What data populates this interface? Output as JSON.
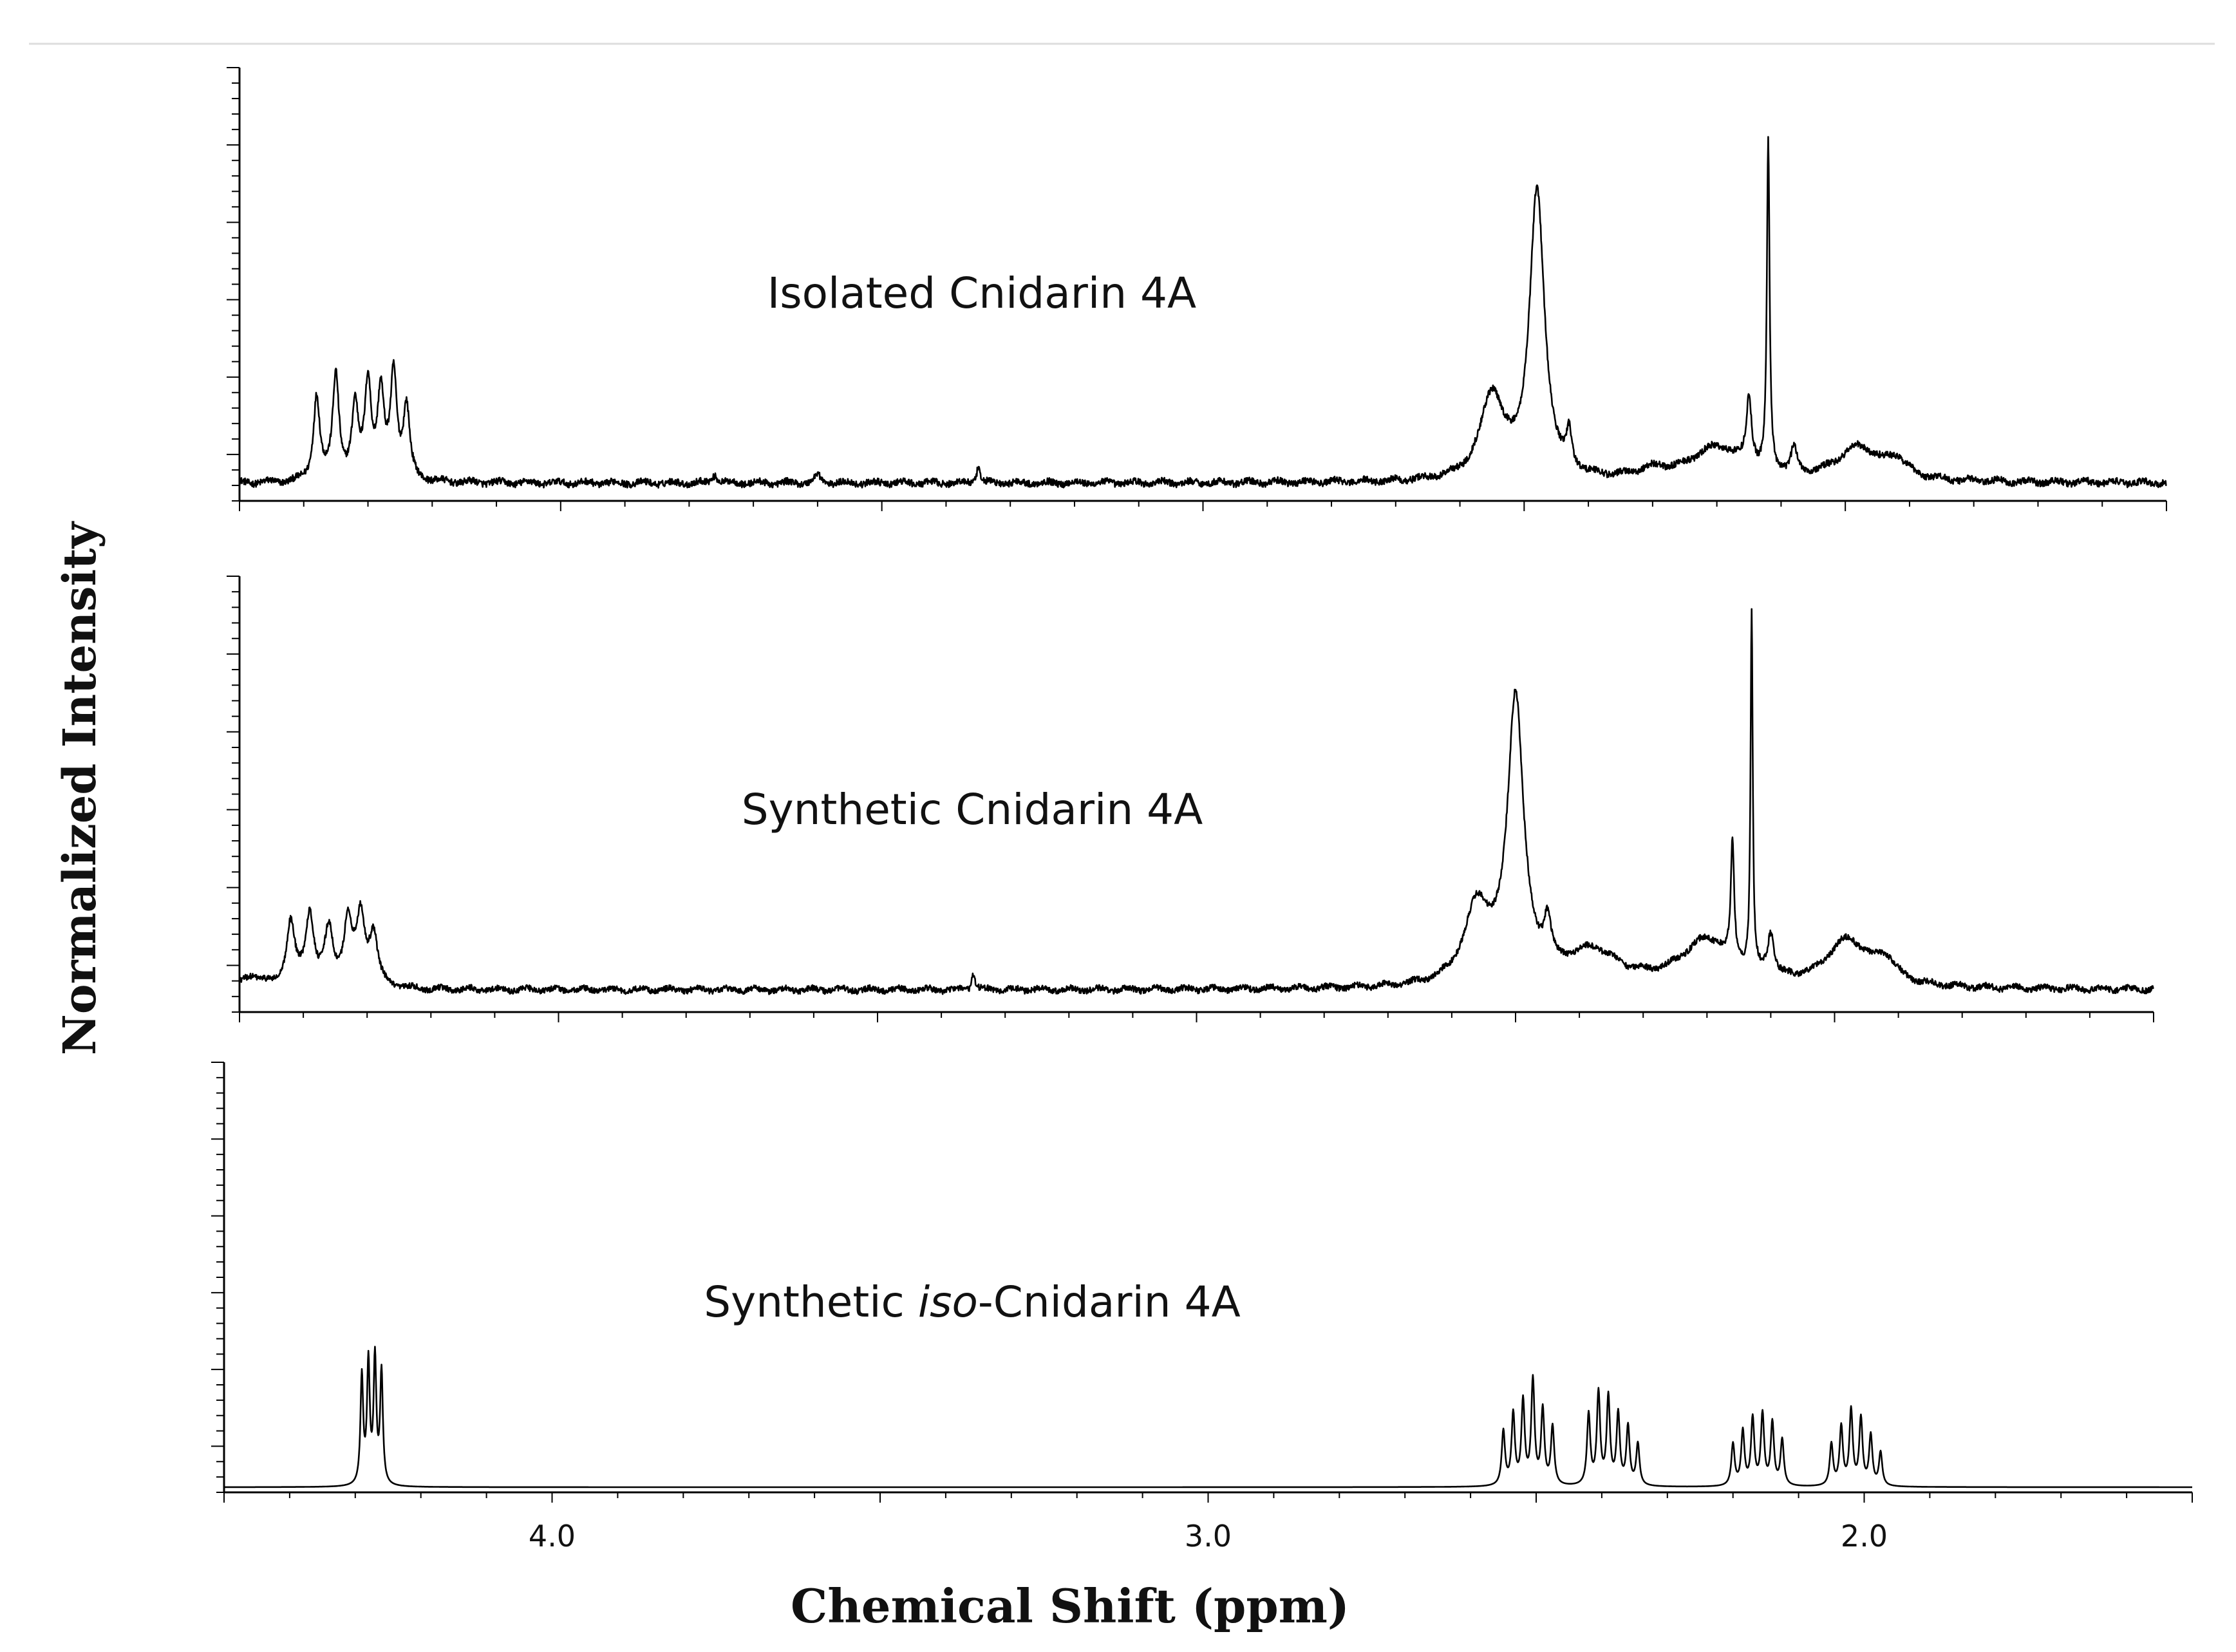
{
  "chart_data": {
    "type": "line",
    "xlabel": "Chemical Shift (ppm)",
    "ylabel": "Normalized Intensity",
    "xlim": [
      4.5,
      1.5
    ],
    "x_reversed": true,
    "x_ticks": [
      {
        "value": 4.0,
        "label": "4.0"
      },
      {
        "value": 3.0,
        "label": "3.0"
      },
      {
        "value": 2.0,
        "label": "2.0"
      }
    ],
    "ylim": [
      0,
      1
    ],
    "grid": false,
    "series": [
      {
        "name": "Isolated Cnidarin 4A",
        "baseline": 0.03,
        "noise": 0.008,
        "peaks": [
          {
            "ppm": 4.38,
            "height": 0.2,
            "width": 0.006
          },
          {
            "ppm": 4.35,
            "height": 0.25,
            "width": 0.006
          },
          {
            "ppm": 4.32,
            "height": 0.17,
            "width": 0.006
          },
          {
            "ppm": 4.3,
            "height": 0.23,
            "width": 0.006
          },
          {
            "ppm": 4.28,
            "height": 0.2,
            "width": 0.006
          },
          {
            "ppm": 4.26,
            "height": 0.25,
            "width": 0.006
          },
          {
            "ppm": 4.24,
            "height": 0.17,
            "width": 0.006
          },
          {
            "ppm": 3.76,
            "height": 0.02,
            "width": 0.005
          },
          {
            "ppm": 3.6,
            "height": 0.02,
            "width": 0.005
          },
          {
            "ppm": 3.35,
            "height": 0.04,
            "width": 0.003
          },
          {
            "ppm": 2.55,
            "height": 0.2,
            "width": 0.022
          },
          {
            "ppm": 2.48,
            "height": 0.68,
            "width": 0.014
          },
          {
            "ppm": 2.43,
            "height": 0.08,
            "width": 0.005
          },
          {
            "ppm": 2.3,
            "height": 0.02,
            "width": 0.03
          },
          {
            "ppm": 2.2,
            "height": 0.08,
            "width": 0.05
          },
          {
            "ppm": 2.15,
            "height": 0.16,
            "width": 0.005
          },
          {
            "ppm": 2.12,
            "height": 0.78,
            "width": 0.0025
          },
          {
            "ppm": 2.08,
            "height": 0.06,
            "width": 0.006
          },
          {
            "ppm": 1.98,
            "height": 0.08,
            "width": 0.04
          },
          {
            "ppm": 1.92,
            "height": 0.04,
            "width": 0.02
          }
        ]
      },
      {
        "name": "Synthetic Cnidarin 4A",
        "baseline": 0.04,
        "noise": 0.007,
        "peaks": [
          {
            "ppm": 4.48,
            "height": 0.03,
            "width": 0.02
          },
          {
            "ppm": 4.42,
            "height": 0.15,
            "width": 0.008
          },
          {
            "ppm": 4.39,
            "height": 0.17,
            "width": 0.008
          },
          {
            "ppm": 4.36,
            "height": 0.13,
            "width": 0.008
          },
          {
            "ppm": 4.33,
            "height": 0.15,
            "width": 0.008
          },
          {
            "ppm": 4.31,
            "height": 0.16,
            "width": 0.008
          },
          {
            "ppm": 4.29,
            "height": 0.12,
            "width": 0.008
          },
          {
            "ppm": 3.35,
            "height": 0.04,
            "width": 0.003
          },
          {
            "ppm": 2.56,
            "height": 0.18,
            "width": 0.025
          },
          {
            "ppm": 2.5,
            "height": 0.67,
            "width": 0.015
          },
          {
            "ppm": 2.45,
            "height": 0.1,
            "width": 0.007
          },
          {
            "ppm": 2.38,
            "height": 0.08,
            "width": 0.05
          },
          {
            "ppm": 2.2,
            "height": 0.11,
            "width": 0.05
          },
          {
            "ppm": 2.16,
            "height": 0.28,
            "width": 0.003
          },
          {
            "ppm": 2.13,
            "height": 0.85,
            "width": 0.002
          },
          {
            "ppm": 2.1,
            "height": 0.1,
            "width": 0.006
          },
          {
            "ppm": 1.98,
            "height": 0.11,
            "width": 0.04
          },
          {
            "ppm": 1.92,
            "height": 0.05,
            "width": 0.02
          }
        ]
      },
      {
        "name": "Synthetic iso-Cnidarin 4A",
        "baseline": 0.0,
        "noise": 0.0,
        "peaks": [
          {
            "ppm": 4.29,
            "height": 0.26,
            "width": 0.0025
          },
          {
            "ppm": 4.28,
            "height": 0.29,
            "width": 0.0025
          },
          {
            "ppm": 4.27,
            "height": 0.3,
            "width": 0.0025
          },
          {
            "ppm": 4.26,
            "height": 0.27,
            "width": 0.0025
          },
          {
            "ppm": 2.55,
            "height": 0.13,
            "width": 0.003
          },
          {
            "ppm": 2.535,
            "height": 0.17,
            "width": 0.003
          },
          {
            "ppm": 2.52,
            "height": 0.2,
            "width": 0.003
          },
          {
            "ppm": 2.505,
            "height": 0.25,
            "width": 0.003
          },
          {
            "ppm": 2.49,
            "height": 0.18,
            "width": 0.003
          },
          {
            "ppm": 2.475,
            "height": 0.14,
            "width": 0.003
          },
          {
            "ppm": 2.42,
            "height": 0.17,
            "width": 0.003
          },
          {
            "ppm": 2.405,
            "height": 0.22,
            "width": 0.003
          },
          {
            "ppm": 2.39,
            "height": 0.21,
            "width": 0.003
          },
          {
            "ppm": 2.375,
            "height": 0.17,
            "width": 0.003
          },
          {
            "ppm": 2.36,
            "height": 0.14,
            "width": 0.003
          },
          {
            "ppm": 2.345,
            "height": 0.1,
            "width": 0.003
          },
          {
            "ppm": 2.2,
            "height": 0.1,
            "width": 0.003
          },
          {
            "ppm": 2.185,
            "height": 0.13,
            "width": 0.003
          },
          {
            "ppm": 2.17,
            "height": 0.16,
            "width": 0.003
          },
          {
            "ppm": 2.155,
            "height": 0.17,
            "width": 0.003
          },
          {
            "ppm": 2.14,
            "height": 0.15,
            "width": 0.003
          },
          {
            "ppm": 2.125,
            "height": 0.11,
            "width": 0.003
          },
          {
            "ppm": 2.05,
            "height": 0.1,
            "width": 0.003
          },
          {
            "ppm": 2.035,
            "height": 0.14,
            "width": 0.003
          },
          {
            "ppm": 2.02,
            "height": 0.18,
            "width": 0.003
          },
          {
            "ppm": 2.005,
            "height": 0.16,
            "width": 0.003
          },
          {
            "ppm": 1.99,
            "height": 0.12,
            "width": 0.003
          },
          {
            "ppm": 1.975,
            "height": 0.08,
            "width": 0.003
          }
        ]
      }
    ]
  }
}
